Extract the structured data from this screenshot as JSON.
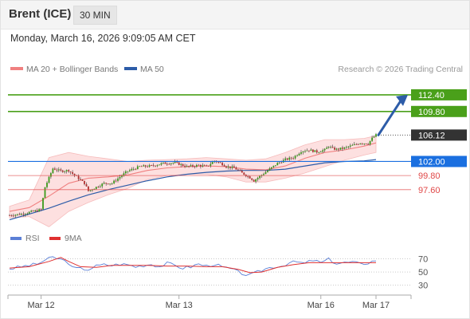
{
  "header": {
    "instrument": "Brent (ICE)",
    "timeframe": "30 MIN",
    "datetime": "Monday, March 16, 2026 9:09:05 AM CET"
  },
  "legend": {
    "ma20_bb": "MA 20 + Bollinger Bands",
    "ma50": "MA 50",
    "credit": "Research © 2026 Trading Central",
    "rsi": "RSI",
    "ma9": "9MA"
  },
  "colors": {
    "bollinger_fill": "#fde0e0",
    "ma20": "#f08080",
    "ma50": "#2d5ca8",
    "target": "#4aa01a",
    "pivot": "#1a6fe0",
    "support": "#e04848",
    "current": "#333333",
    "arrow": "#2d5ca8",
    "rsi": "#5b7fd6",
    "ma9": "#e03030",
    "candle_up": "#3a9a1a",
    "candle_down": "#b03030"
  },
  "chart_data": [
    {
      "type": "candlestick",
      "title": "",
      "x_ticks": [
        "Mar 12",
        "Mar 13",
        "Mar 16",
        "Mar 17"
      ],
      "ylim": [
        92.6,
        115.0
      ],
      "levels": [
        {
          "label": "112.40",
          "value": 112.4,
          "role": "target"
        },
        {
          "label": "109.80",
          "value": 109.8,
          "role": "target"
        },
        {
          "label": "106.12",
          "value": 106.12,
          "role": "current"
        },
        {
          "label": "102.00",
          "value": 102.0,
          "role": "pivot"
        },
        {
          "label": "99.80",
          "value": 99.8,
          "role": "support"
        },
        {
          "label": "97.60",
          "value": 97.6,
          "role": "support"
        }
      ],
      "close_path": [
        [
          0,
          93.6
        ],
        [
          6,
          93.8
        ],
        [
          12,
          94.2
        ],
        [
          16,
          94.5
        ],
        [
          18,
          98.0
        ],
        [
          22,
          100.9
        ],
        [
          26,
          100.5
        ],
        [
          30,
          100.6
        ],
        [
          34,
          99.6
        ],
        [
          38,
          98.6
        ],
        [
          40,
          97.4
        ],
        [
          44,
          98.0
        ],
        [
          48,
          98.6
        ],
        [
          52,
          98.6
        ],
        [
          56,
          99.6
        ],
        [
          60,
          100.5
        ],
        [
          66,
          101.2
        ],
        [
          72,
          101.3
        ],
        [
          78,
          101.7
        ],
        [
          84,
          101.8
        ],
        [
          90,
          101.2
        ],
        [
          96,
          101.4
        ],
        [
          100,
          101.2
        ],
        [
          104,
          102.1
        ],
        [
          108,
          101.6
        ],
        [
          110,
          101.2
        ],
        [
          114,
          101.0
        ],
        [
          118,
          100.2
        ],
        [
          122,
          99.5
        ],
        [
          124,
          99.0
        ],
        [
          128,
          99.9
        ],
        [
          132,
          100.8
        ],
        [
          136,
          101.7
        ],
        [
          140,
          102.3
        ],
        [
          144,
          102.6
        ],
        [
          148,
          103.6
        ],
        [
          152,
          103.8
        ],
        [
          156,
          103.5
        ],
        [
          160,
          103.8
        ],
        [
          162,
          104.4
        ],
        [
          164,
          104.0
        ],
        [
          166,
          103.9
        ],
        [
          170,
          104.1
        ],
        [
          174,
          104.5
        ],
        [
          178,
          104.9
        ],
        [
          182,
          104.8
        ],
        [
          184,
          105.6
        ],
        [
          186,
          106.12
        ]
      ],
      "ma20_path": [
        [
          0,
          94.2
        ],
        [
          10,
          94.8
        ],
        [
          20,
          96.6
        ],
        [
          30,
          98.6
        ],
        [
          40,
          99.4
        ],
        [
          50,
          99.6
        ],
        [
          60,
          99.9
        ],
        [
          70,
          100.6
        ],
        [
          80,
          101.0
        ],
        [
          90,
          101.2
        ],
        [
          100,
          101.3
        ],
        [
          110,
          101.2
        ],
        [
          120,
          100.8
        ],
        [
          130,
          100.7
        ],
        [
          140,
          101.3
        ],
        [
          150,
          102.5
        ],
        [
          160,
          103.4
        ],
        [
          170,
          103.8
        ],
        [
          180,
          104.4
        ],
        [
          186,
          104.9
        ]
      ],
      "ma50_path": [
        [
          0,
          92.9
        ],
        [
          10,
          93.8
        ],
        [
          20,
          94.7
        ],
        [
          30,
          95.8
        ],
        [
          40,
          96.8
        ],
        [
          50,
          97.6
        ],
        [
          60,
          98.3
        ],
        [
          70,
          99.0
        ],
        [
          80,
          99.6
        ],
        [
          90,
          100.0
        ],
        [
          100,
          100.3
        ],
        [
          110,
          100.5
        ],
        [
          120,
          100.6
        ],
        [
          130,
          100.6
        ],
        [
          140,
          100.8
        ],
        [
          150,
          101.3
        ],
        [
          160,
          101.8
        ],
        [
          170,
          102.0
        ],
        [
          180,
          102.1
        ],
        [
          186,
          102.3
        ]
      ],
      "bb_upper": [
        [
          0,
          95.0
        ],
        [
          10,
          96.0
        ],
        [
          20,
          102.6
        ],
        [
          30,
          103.4
        ],
        [
          40,
          102.8
        ],
        [
          50,
          102.4
        ],
        [
          60,
          102.0
        ],
        [
          70,
          102.2
        ],
        [
          80,
          102.3
        ],
        [
          90,
          102.4
        ],
        [
          100,
          102.6
        ],
        [
          110,
          102.4
        ],
        [
          120,
          102.2
        ],
        [
          130,
          102.4
        ],
        [
          140,
          103.4
        ],
        [
          150,
          104.6
        ],
        [
          160,
          105.4
        ],
        [
          170,
          105.4
        ],
        [
          180,
          105.6
        ],
        [
          186,
          106.0
        ]
      ],
      "bb_lower": [
        [
          0,
          93.2
        ],
        [
          10,
          93.4
        ],
        [
          20,
          91.8
        ],
        [
          30,
          94.2
        ],
        [
          40,
          95.6
        ],
        [
          50,
          96.8
        ],
        [
          60,
          97.8
        ],
        [
          70,
          99.2
        ],
        [
          80,
          99.8
        ],
        [
          90,
          100.0
        ],
        [
          100,
          100.0
        ],
        [
          110,
          99.6
        ],
        [
          120,
          98.8
        ],
        [
          130,
          98.8
        ],
        [
          140,
          99.4
        ],
        [
          150,
          100.2
        ],
        [
          160,
          101.2
        ],
        [
          170,
          102.2
        ],
        [
          180,
          103.0
        ],
        [
          186,
          103.4
        ]
      ],
      "projection": {
        "from_value": 106.12,
        "to_value": 112.4
      }
    },
    {
      "type": "line",
      "title": "",
      "ylim": [
        20,
        85
      ],
      "y_ticks": [
        70,
        50,
        30
      ],
      "series": [
        {
          "name": "RSI",
          "values": [
            [
              0,
              55
            ],
            [
              6,
              58
            ],
            [
              10,
              60
            ],
            [
              14,
              62
            ],
            [
              18,
              68
            ],
            [
              22,
              72
            ],
            [
              26,
              69
            ],
            [
              30,
              64
            ],
            [
              32,
              56
            ],
            [
              36,
              55
            ],
            [
              40,
              54
            ],
            [
              44,
              59
            ],
            [
              48,
              61
            ],
            [
              52,
              60
            ],
            [
              56,
              62
            ],
            [
              60,
              61
            ],
            [
              64,
              58
            ],
            [
              68,
              60
            ],
            [
              72,
              62
            ],
            [
              76,
              58
            ],
            [
              80,
              63
            ],
            [
              84,
              60
            ],
            [
              88,
              56
            ],
            [
              92,
              58
            ],
            [
              96,
              62
            ],
            [
              100,
              59
            ],
            [
              104,
              62
            ],
            [
              108,
              57
            ],
            [
              112,
              55
            ],
            [
              116,
              50
            ],
            [
              120,
              46
            ],
            [
              122,
              45
            ],
            [
              126,
              50
            ],
            [
              130,
              55
            ],
            [
              134,
              58
            ],
            [
              138,
              59
            ],
            [
              142,
              64
            ],
            [
              146,
              65
            ],
            [
              150,
              63
            ],
            [
              154,
              68
            ],
            [
              158,
              64
            ],
            [
              162,
              69
            ],
            [
              166,
              63
            ],
            [
              170,
              64
            ],
            [
              174,
              65
            ],
            [
              178,
              62
            ],
            [
              182,
              64
            ],
            [
              186,
              68
            ]
          ]
        },
        {
          "name": "9MA",
          "values": [
            [
              0,
              56
            ],
            [
              10,
              58
            ],
            [
              20,
              66
            ],
            [
              26,
              72
            ],
            [
              30,
              66
            ],
            [
              36,
              58
            ],
            [
              44,
              57
            ],
            [
              52,
              60
            ],
            [
              60,
              60
            ],
            [
              70,
              60
            ],
            [
              80,
              59
            ],
            [
              90,
              59
            ],
            [
              100,
              58
            ],
            [
              108,
              58
            ],
            [
              116,
              54
            ],
            [
              122,
              49
            ],
            [
              128,
              50
            ],
            [
              136,
              57
            ],
            [
              144,
              61
            ],
            [
              152,
              64
            ],
            [
              160,
              64
            ],
            [
              170,
              64
            ],
            [
              180,
              64
            ],
            [
              186,
              64
            ]
          ]
        }
      ]
    }
  ]
}
